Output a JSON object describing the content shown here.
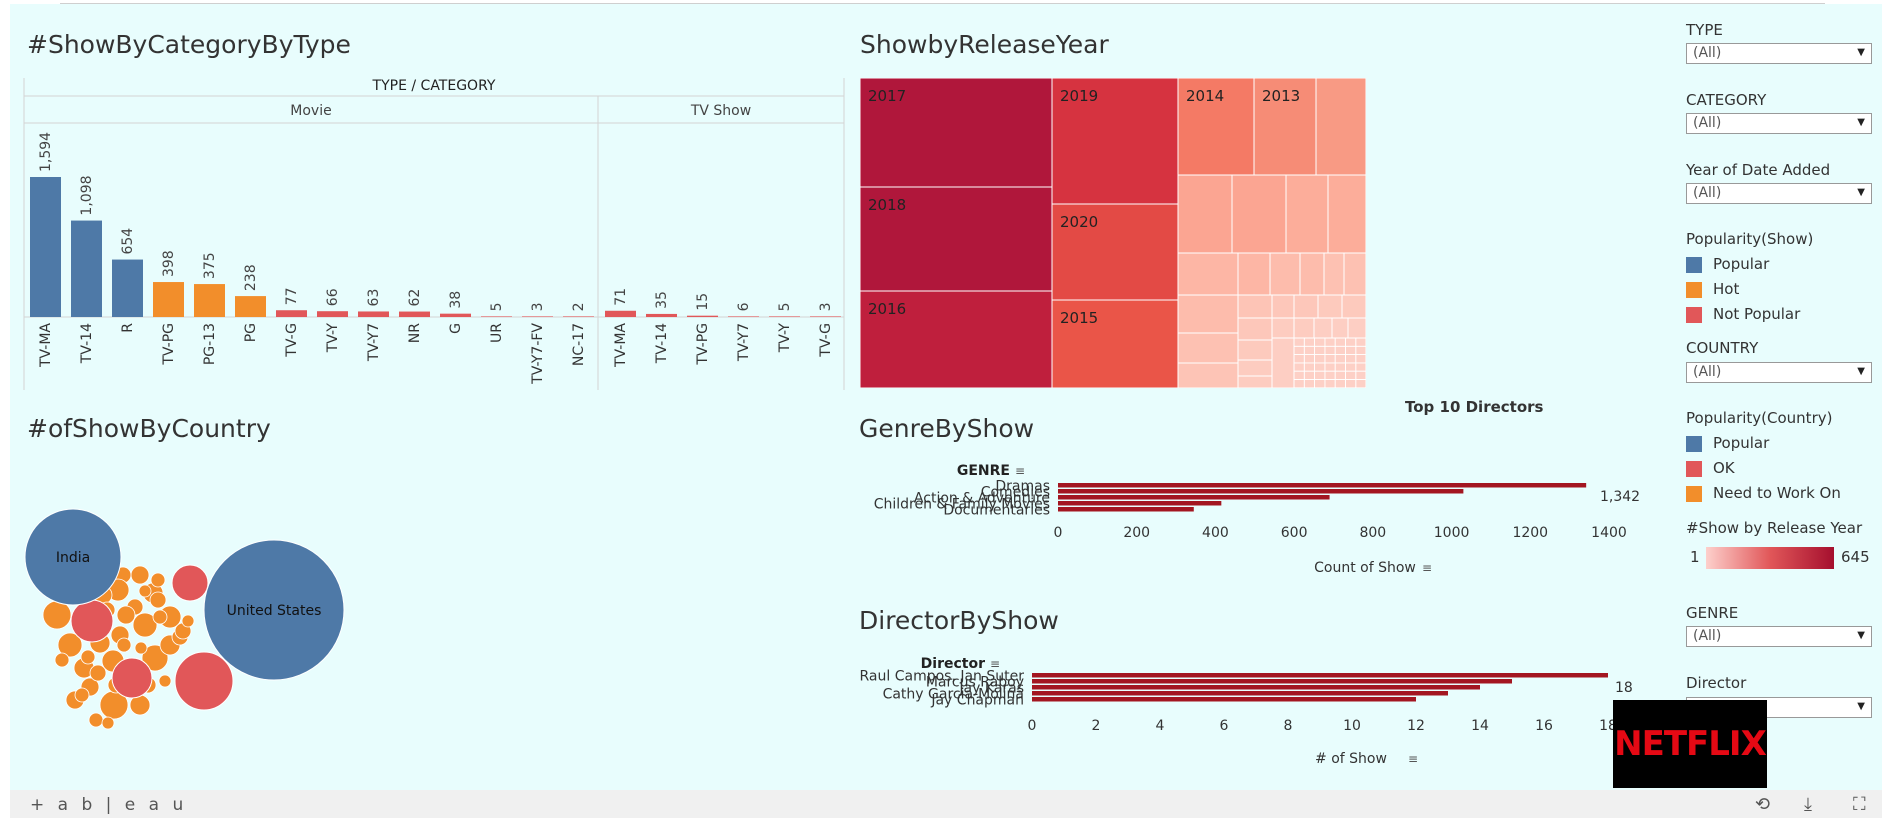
{
  "dashboard": {
    "brand": "+ a b | e a u",
    "logo_text": "NETFLIX",
    "icons": [
      "share-icon",
      "download-icon",
      "fullscreen-icon"
    ]
  },
  "category_chart": {
    "title": "#ShowByCategoryByType",
    "header": "TYPE / CATEGORY",
    "panes": [
      "Movie",
      "TV Show"
    ]
  },
  "release_chart": {
    "title": "ShowbyReleaseYear"
  },
  "country_chart": {
    "title": "#ofShowByCountry"
  },
  "genre_chart": {
    "title": "GenreByShow",
    "header": "GENRE",
    "top_label": "Top 10 Directors",
    "xlabel": "Count of Show",
    "max_label": "1,342"
  },
  "director_chart": {
    "title": "DirectorByShow",
    "header": "Director",
    "xlabel": "# of Show",
    "max_label": "18"
  },
  "filters": {
    "type": {
      "label": "TYPE",
      "value": "(All)"
    },
    "category": {
      "label": "CATEGORY",
      "value": "(All)"
    },
    "year_added": {
      "label": "Year of Date Added",
      "value": "(All)"
    },
    "country": {
      "label": "COUNTRY",
      "value": "(All)"
    },
    "genre": {
      "label": "GENRE",
      "value": "(All)"
    },
    "director": {
      "label": "Director",
      "value": ""
    }
  },
  "legends": {
    "popularity_show": {
      "title": "Popularity(Show)",
      "items": [
        {
          "label": "Popular",
          "color": "#4e79a7"
        },
        {
          "label": "Hot",
          "color": "#f28e2b"
        },
        {
          "label": "Not Popular",
          "color": "#e15759"
        }
      ]
    },
    "popularity_country": {
      "title": "Popularity(Country)",
      "items": [
        {
          "label": "Popular",
          "color": "#4e79a7"
        },
        {
          "label": "OK",
          "color": "#e15759"
        },
        {
          "label": "Need to Work On",
          "color": "#f28e2b"
        }
      ]
    },
    "release_year": {
      "title": "#Show by Release Year",
      "min": "1",
      "max": "645"
    }
  },
  "chart_data": [
    {
      "type": "bar",
      "title": "#ShowByCategoryByType",
      "groups": [
        {
          "name": "Movie",
          "categories": [
            "TV-MA",
            "TV-14",
            "R",
            "TV-PG",
            "PG-13",
            "PG",
            "TV-G",
            "TV-Y",
            "TV-Y7",
            "NR",
            "G",
            "UR",
            "TV-Y7-FV",
            "NC-17"
          ],
          "values": [
            1594,
            1098,
            654,
            398,
            375,
            238,
            77,
            66,
            63,
            62,
            38,
            5,
            3,
            2
          ],
          "colors": [
            "#4e79a7",
            "#4e79a7",
            "#4e79a7",
            "#f28e2b",
            "#f28e2b",
            "#f28e2b",
            "#e15759",
            "#e15759",
            "#e15759",
            "#e15759",
            "#e15759",
            "#e15759",
            "#e15759",
            "#e15759"
          ]
        },
        {
          "name": "TV Show",
          "categories": [
            "TV-MA",
            "TV-14",
            "TV-PG",
            "TV-Y7",
            "TV-Y",
            "TV-G"
          ],
          "values": [
            71,
            35,
            15,
            6,
            5,
            3
          ],
          "colors": [
            "#e15759",
            "#e15759",
            "#e15759",
            "#e15759",
            "#e15759",
            "#e15759"
          ]
        }
      ]
    },
    {
      "type": "treemap",
      "title": "ShowbyReleaseYear",
      "labels": [
        "2017",
        "2018",
        "2016",
        "2019",
        "2020",
        "2015",
        "2014",
        "2013"
      ]
    },
    {
      "type": "bubble",
      "title": "#ofShowByCountry",
      "labels": [
        "India",
        "United States"
      ]
    },
    {
      "type": "bar",
      "orientation": "horizontal",
      "title": "GenreByShow",
      "categories": [
        "Dramas",
        "Comedies",
        "Action & Adventure",
        "Children & Family Movies",
        "Documentaries"
      ],
      "values": [
        1342,
        1030,
        690,
        415,
        345
      ],
      "color": "#a31621",
      "xlim": [
        0,
        1400
      ],
      "xticks": [
        0,
        200,
        400,
        600,
        800,
        1000,
        1200,
        1400
      ],
      "xlabel": "Count of Show"
    },
    {
      "type": "bar",
      "orientation": "horizontal",
      "title": "DirectorByShow",
      "categories": [
        "Raul Campos, Jan Suter",
        "Marcus Raboy",
        "Jay Karas",
        "Cathy Garcia-Molina",
        "Jay Chapman"
      ],
      "values": [
        18,
        15,
        14,
        13,
        12
      ],
      "color": "#a31621",
      "xlim": [
        0,
        18
      ],
      "xticks": [
        0,
        2,
        4,
        6,
        8,
        10,
        12,
        14,
        16,
        18
      ],
      "xlabel": "# of Show"
    }
  ]
}
